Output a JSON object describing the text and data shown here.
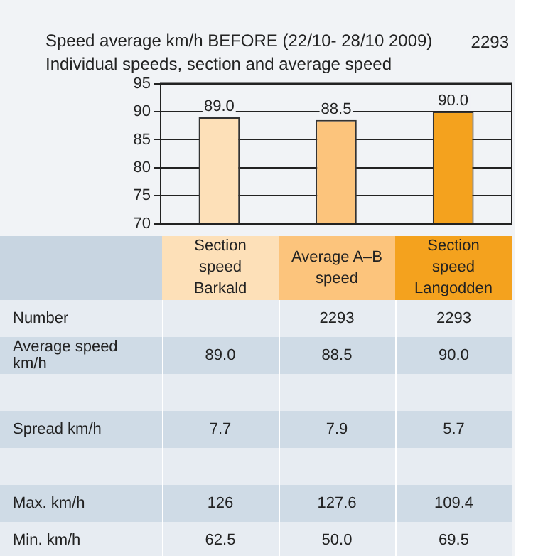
{
  "chart_data": {
    "type": "bar",
    "title": "Speed average km/h BEFORE (22/10- 28/10 2009)",
    "subtitle": "Individual speeds, section and average speed",
    "categories": [
      "Section speed Barkald",
      "Average A–B speed",
      "Section speed Langodden"
    ],
    "values": [
      89.0,
      88.5,
      90.0
    ],
    "value_labels": [
      "89.0",
      "88.5",
      "90.0"
    ],
    "colors": [
      "#fde0b8",
      "#fcc47c",
      "#f4a21e"
    ],
    "ylim": [
      70,
      95
    ],
    "yticks": [
      70,
      75,
      80,
      85,
      90,
      95
    ],
    "grid": "y",
    "legend": false,
    "annotations": [
      "2293",
      "Number",
      "2293",
      "2293",
      "Average speed km/h",
      "89.0",
      "88.5",
      "90.0",
      "Spread km/h",
      "7.7",
      "7.9",
      "5.7",
      "Max. km/h",
      "126",
      "127.6",
      "109.4",
      "Min. km/h",
      "62.5",
      "50.0",
      "69.5"
    ]
  }
}
